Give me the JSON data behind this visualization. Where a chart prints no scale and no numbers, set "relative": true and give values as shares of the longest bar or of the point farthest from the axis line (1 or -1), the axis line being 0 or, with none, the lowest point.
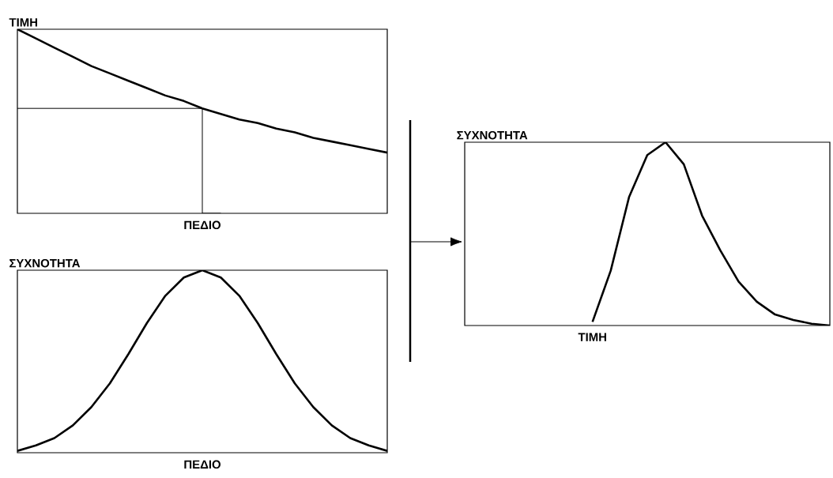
{
  "chart_data": [
    {
      "type": "line",
      "relative": true,
      "ylabel": "ΤΙΜΗ",
      "xlabel": "ΠΕΔΙΟ",
      "marker": "none",
      "line_style": "solid",
      "categories": [
        null,
        null,
        null,
        null,
        null,
        null,
        null,
        null,
        null,
        null,
        null,
        null,
        null,
        null,
        null,
        null,
        null,
        null,
        null,
        null,
        null
      ],
      "series": [
        {
          "color": "#000000",
          "values": [
            1,
            0.95,
            0.9,
            0.85,
            0.8,
            0.76,
            0.72,
            0.68,
            0.64,
            0.61,
            0.57,
            0.54,
            0.51,
            0.49,
            0.46,
            0.44,
            0.41,
            0.39,
            0.37,
            0.35,
            0.33
          ]
        },
        {
          "type": "step",
          "color": "#000000",
          "values": [
            0.57,
            0.57,
            0.57,
            0.57,
            0.57,
            0.57,
            0.57,
            0.57,
            0.57,
            0.57,
            0.57,
            0,
            null,
            null,
            null,
            null,
            null,
            null,
            null,
            null,
            null
          ]
        }
      ]
    },
    {
      "type": "line",
      "relative": true,
      "ylabel": "ΣΥΧΝΟΤΗΤΑ",
      "xlabel": "ΠΕΔΙΟ",
      "marker": "none",
      "line_style": "solid",
      "categories": [
        null,
        null,
        null,
        null,
        null,
        null,
        null,
        null,
        null,
        null,
        null,
        null,
        null,
        null,
        null,
        null,
        null,
        null,
        null,
        null,
        null
      ],
      "series": [
        {
          "color": "#000000",
          "values": [
            0.01,
            0.04,
            0.08,
            0.15,
            0.25,
            0.38,
            0.54,
            0.71,
            0.86,
            0.96,
            1,
            0.96,
            0.86,
            0.71,
            0.54,
            0.38,
            0.25,
            0.15,
            0.08,
            0.04,
            0.01
          ]
        }
      ]
    },
    {
      "type": "line",
      "relative": true,
      "ylabel": "ΣΥΧΝΟΤΗΤΑ",
      "xlabel": "ΤΙΜΗ",
      "marker": "none",
      "line_style": "solid",
      "categories": [
        null,
        null,
        null,
        null,
        null,
        null,
        null,
        null,
        null,
        null,
        null,
        null,
        null,
        null,
        null,
        null,
        null,
        null,
        null,
        null,
        null
      ],
      "series": [
        {
          "color": "#000000",
          "values": [
            null,
            null,
            null,
            null,
            null,
            null,
            null,
            0.02,
            0.3,
            0.7,
            0.93,
            1,
            0.88,
            0.6,
            0.41,
            0.24,
            0.13,
            0.06,
            0.03,
            0.01,
            0
          ]
        }
      ]
    }
  ]
}
